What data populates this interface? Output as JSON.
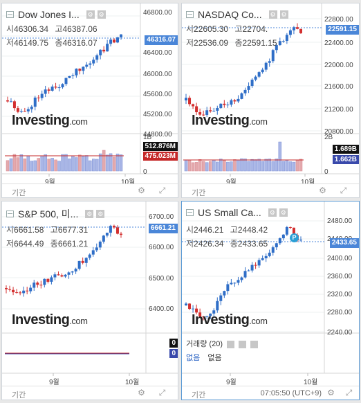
{
  "footer_period": "기간",
  "clock": "07:05:50 (UTC+9)",
  "logo_main": "Investing",
  "logo_suffix": ".com",
  "month_labels": [
    "9월",
    "10월"
  ],
  "panels": [
    {
      "title": "Dow Jones I...",
      "open_label": "시",
      "open": "46306.34",
      "high_label": "고",
      "high": "46387.06",
      "low_label": "저",
      "low": "46149.75",
      "close_label": "종",
      "close": "46316.07",
      "price_label": "46316.07",
      "y_ticks": [
        "46800.00",
        "46400.00",
        "46000.00",
        "45600.00",
        "45200.00",
        "44800.00"
      ],
      "vol_ticks": [
        "1B",
        "0"
      ],
      "vol_labels": [
        "512.876M",
        "475.023M"
      ]
    },
    {
      "title": "NASDAQ Co...",
      "open_label": "시",
      "open": "22605.30",
      "high_label": "고",
      "high": "22704.",
      "low_label": "저",
      "low": "22536.09",
      "close_label": "종",
      "close": "22591.15",
      "price_label": "22591.15",
      "y_ticks": [
        "22800.00",
        "22400.00",
        "22000.00",
        "21600.00",
        "21200.00",
        "20800.00"
      ],
      "vol_ticks": [
        "2B",
        "0"
      ],
      "vol_labels": [
        "1.689B",
        "1.662B"
      ]
    },
    {
      "title": "S&P 500, 미...",
      "open_label": "시",
      "open": "6661.58",
      "high_label": "고",
      "high": "6677.31",
      "low_label": "저",
      "low": "6644.49",
      "close_label": "종",
      "close": "6661.21",
      "price_label": "6661.21",
      "y_ticks": [
        "6700.00",
        "6600.00",
        "6500.00",
        "6400.00"
      ],
      "vol_labels": [
        "0",
        "0"
      ]
    },
    {
      "title": "US Small Ca...",
      "open_label": "시",
      "open": "2446.21",
      "high_label": "고",
      "high": "2448.42",
      "low_label": "저",
      "low": "2426.34",
      "close_label": "종",
      "close": "2433.65",
      "price_label": "2433.65",
      "y_ticks": [
        "2480.00",
        "2440.00",
        "2400.00",
        "2360.00",
        "2320.00",
        "2280.00"
      ],
      "sub_title": "거래량 (20)",
      "nodata": [
        "없음",
        "없음"
      ],
      "p_marker": "P"
    }
  ],
  "colors": {
    "up": "#2f6ec7",
    "down": "#d32f2f",
    "price_label_bg": "#4a86d8",
    "vol_label_dark": "#111111",
    "vol_label_red": "#c62828",
    "vol_label_blue": "#3949ab",
    "active_border": "#5b9bd5"
  }
}
